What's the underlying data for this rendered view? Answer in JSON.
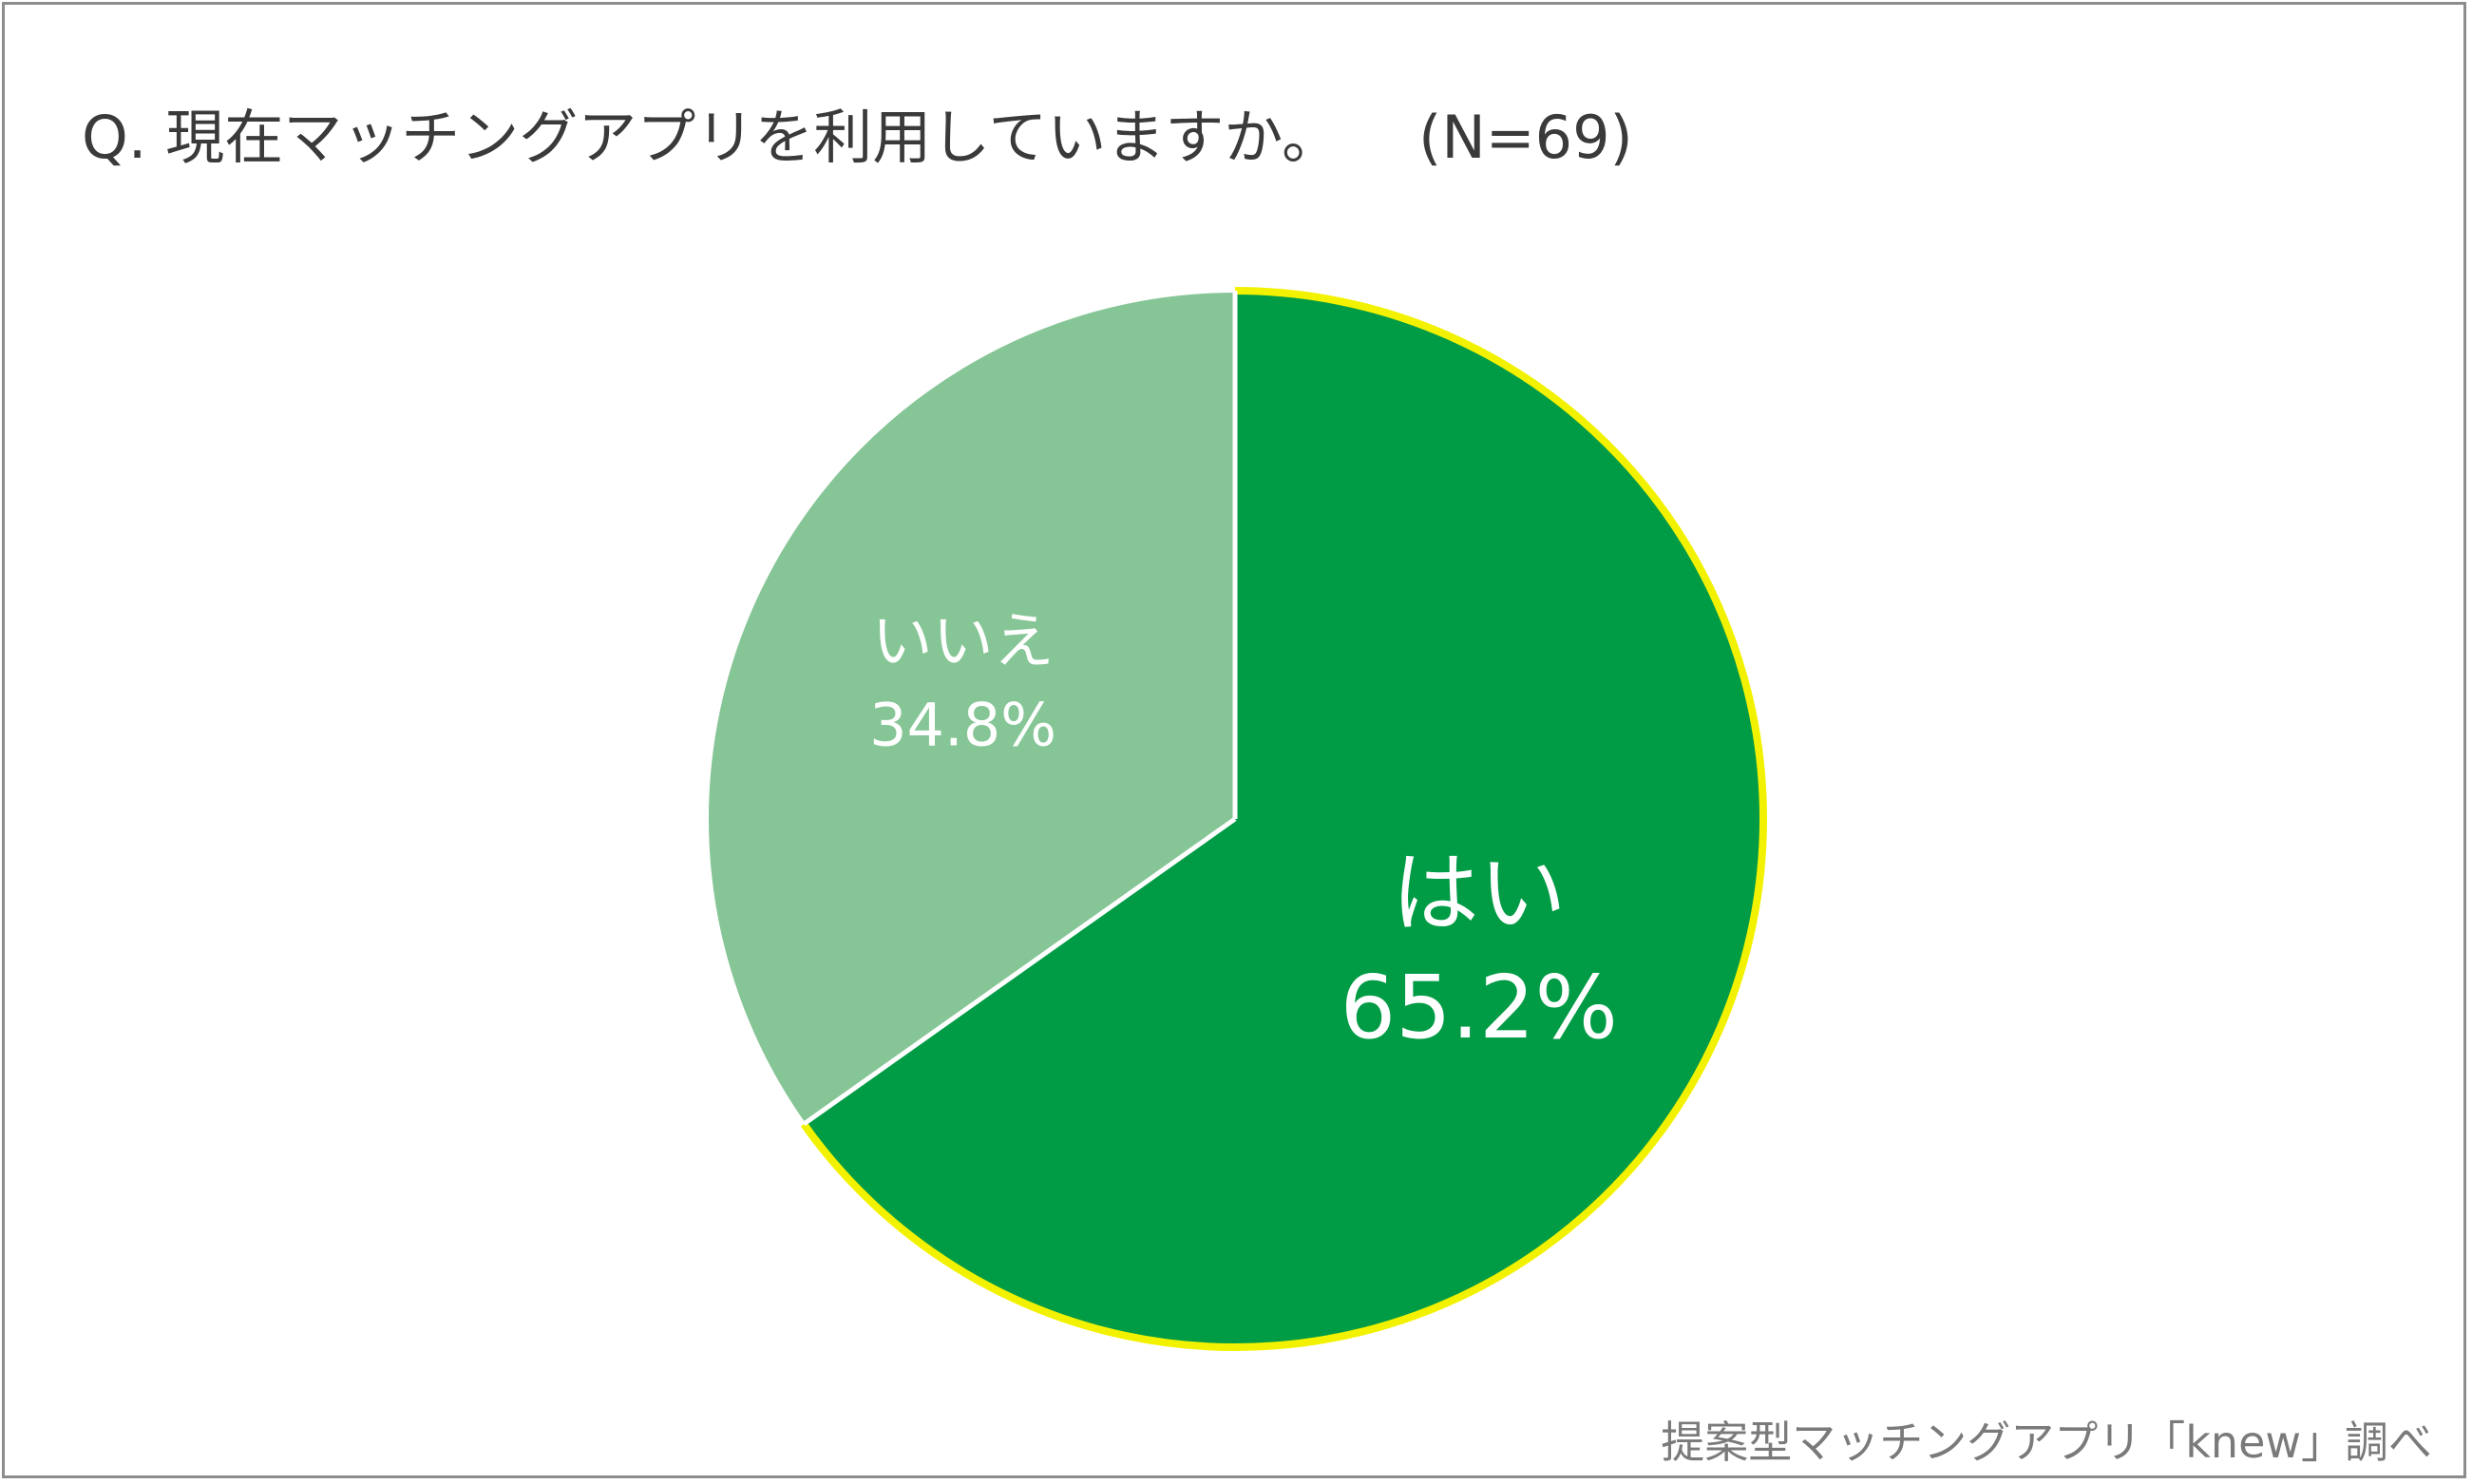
{
  "title": "Q. 現在マッチングアプリを利用していますか。",
  "sample_size": "(N=69)",
  "source": "提案型マッチングアプリ「knew」調べ",
  "chart_data": {
    "type": "pie",
    "title": "Q. 現在マッチングアプリを利用していますか。",
    "slices": [
      {
        "label": "はい",
        "value": 65.2,
        "display": "65.2%",
        "color": "#009b45",
        "outline": "#f2f200"
      },
      {
        "label": "いいえ",
        "value": 34.8,
        "display": "34.8%",
        "color": "#86c596",
        "outline": "#ffffff"
      }
    ],
    "start": "12 o'clock",
    "direction": "clockwise"
  }
}
